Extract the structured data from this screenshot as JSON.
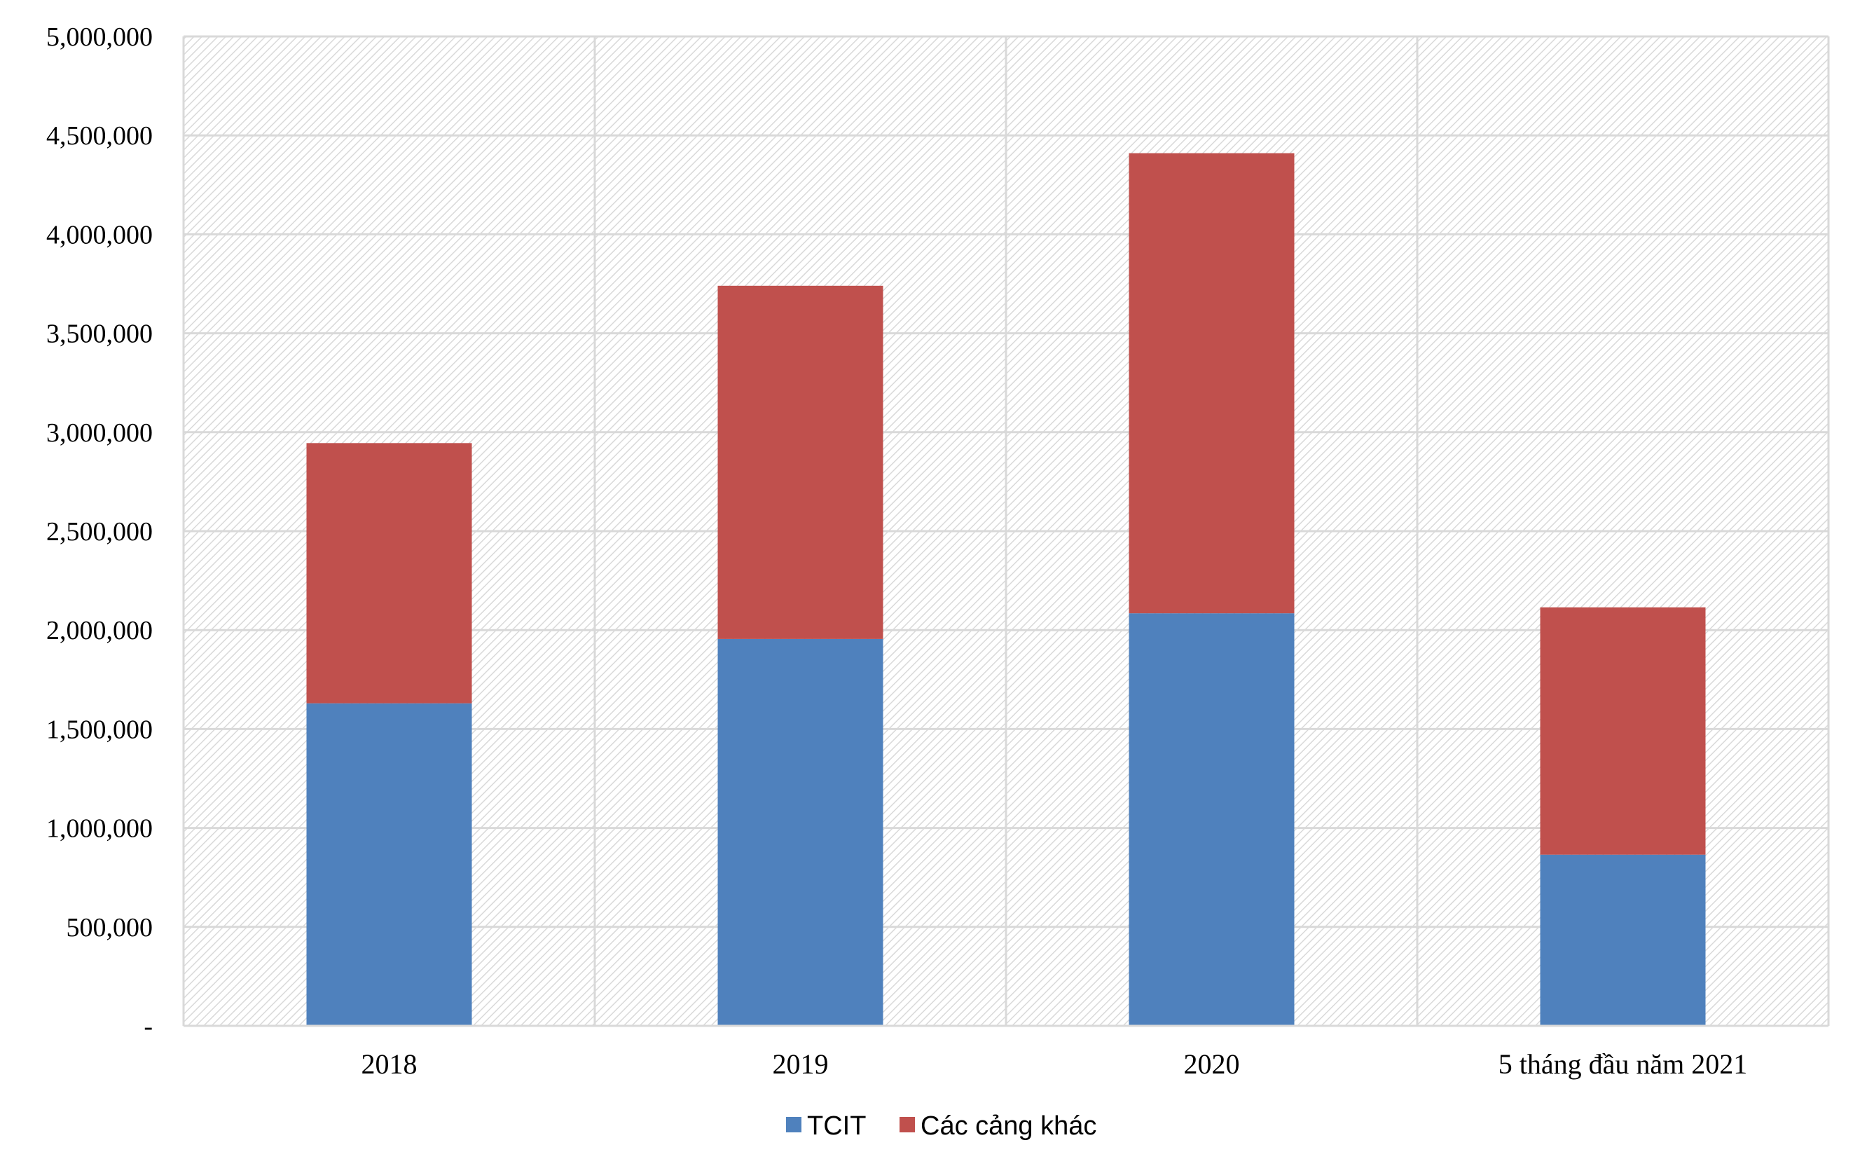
{
  "chart_data": {
    "type": "bar",
    "stacked": true,
    "categories": [
      "2018",
      "2019",
      "2020",
      "5 tháng đầu năm 2021"
    ],
    "series": [
      {
        "name": "TCIT",
        "values": [
          1630000,
          1955000,
          2085000,
          865000
        ],
        "color": "#4F81BD"
      },
      {
        "name": "Các cảng khác",
        "values": [
          1315000,
          1785000,
          2325000,
          1250000
        ],
        "color": "#C0504D"
      }
    ],
    "ylim": [
      0,
      5000000
    ],
    "ytick_step": 500000,
    "ytick_labels": [
      "-",
      "500,000",
      "1,000,000",
      "1,500,000",
      "2,000,000",
      "2,500,000",
      "3,000,000",
      "3,500,000",
      "4,000,000",
      "4,500,000",
      "5,000,000"
    ],
    "title": "",
    "xlabel": "",
    "ylabel": "",
    "grid": true,
    "legend_position": "bottom",
    "plot_background": "hatched-light-gray"
  }
}
